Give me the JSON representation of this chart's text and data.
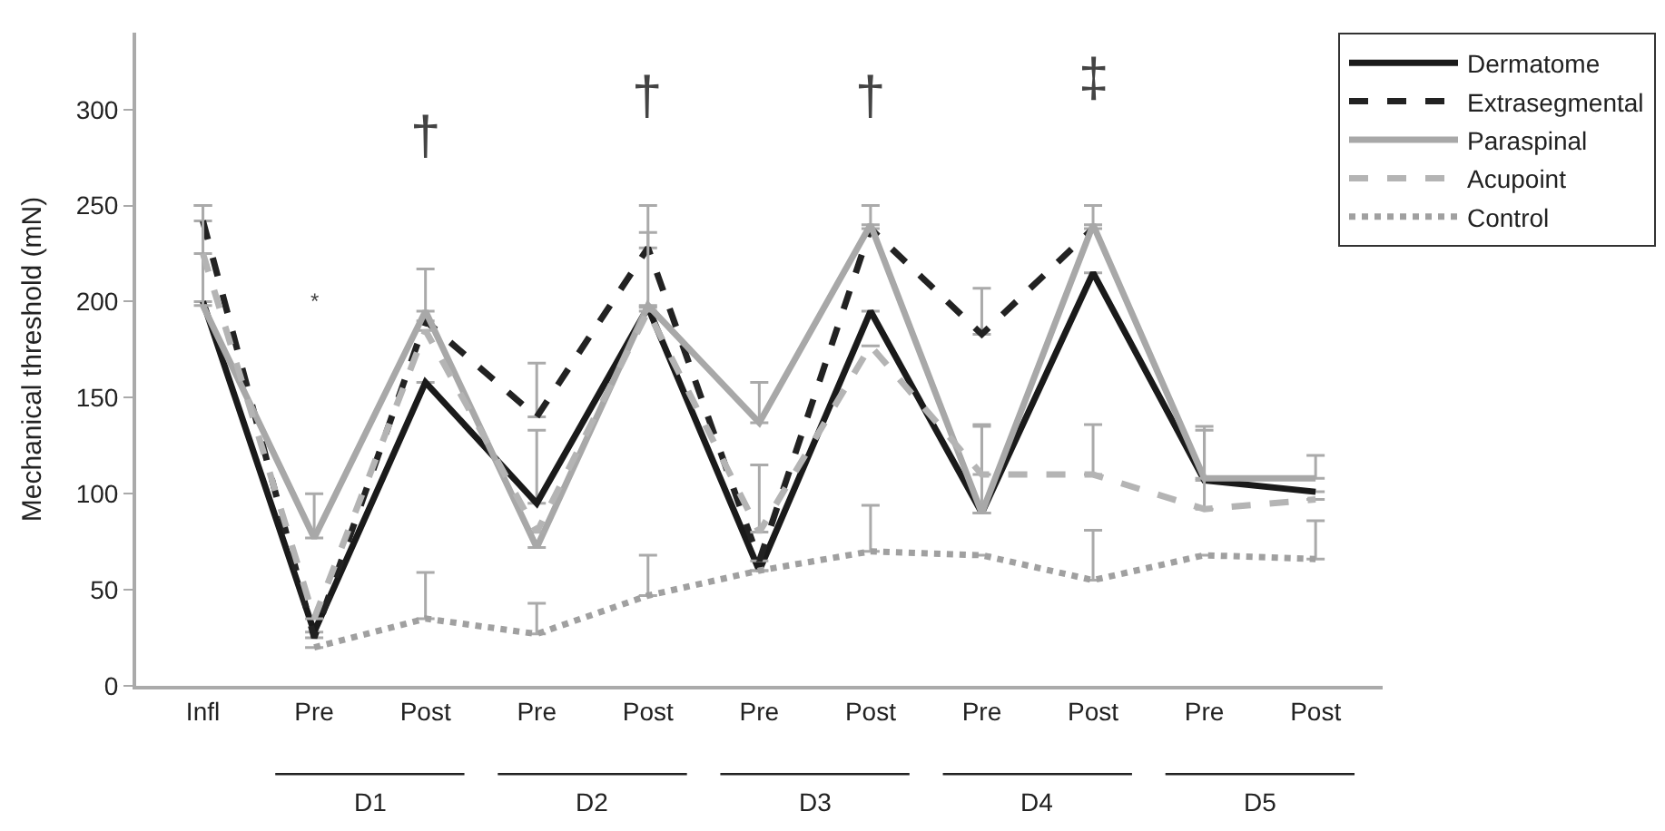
{
  "chart_data": {
    "type": "line",
    "ylabel": "Mechanical threshold (mN)",
    "categories": [
      "Infl",
      "Pre",
      "Post",
      "Pre",
      "Post",
      "Pre",
      "Post",
      "Pre",
      "Post",
      "Pre",
      "Post"
    ],
    "ylim": [
      0,
      340
    ],
    "yticks": [
      0,
      50,
      100,
      150,
      200,
      250,
      300
    ],
    "series": [
      {
        "name": "Dermatome",
        "color": "#1a1a1a",
        "line_style": "solid",
        "values": [
          200,
          28,
          158,
          95,
          197,
          60,
          195,
          90,
          215,
          107,
          101
        ],
        "errors": [
          null,
          null,
          null,
          [
            95,
            133
          ],
          null,
          null,
          null,
          null,
          null,
          null,
          null
        ]
      },
      {
        "name": "Extrasegmental",
        "color": "#222222",
        "line_style": "dashed",
        "values": [
          242,
          25,
          190,
          140,
          228,
          65,
          238,
          183,
          238,
          null,
          null
        ],
        "errors": [
          [
            242,
            250
          ],
          null,
          null,
          [
            140,
            168
          ],
          [
            228,
            250
          ],
          null,
          null,
          [
            183,
            207
          ],
          null,
          null,
          null
        ]
      },
      {
        "name": "Paraspinal",
        "color": "#a8a8a8",
        "line_style": "solid",
        "values": [
          198,
          77,
          195,
          72,
          198,
          137,
          240,
          90,
          240,
          108,
          108
        ],
        "errors": [
          [
            198,
            250
          ],
          [
            77,
            100
          ],
          [
            195,
            217
          ],
          null,
          [
            198,
            236
          ],
          [
            137,
            158
          ],
          [
            240,
            250
          ],
          [
            90,
            136
          ],
          [
            240,
            250
          ],
          [
            108,
            135
          ],
          [
            108,
            120
          ]
        ]
      },
      {
        "name": "Acupoint",
        "color": "#b4b4b4",
        "line_style": "dashed",
        "values": [
          225,
          35,
          185,
          80,
          195,
          80,
          177,
          110,
          110,
          92,
          97
        ],
        "errors": [
          null,
          null,
          null,
          null,
          null,
          [
            80,
            115
          ],
          null,
          [
            110,
            135
          ],
          [
            110,
            136
          ],
          [
            92,
            133
          ],
          null
        ]
      },
      {
        "name": "Control",
        "color": "#a0a0a0",
        "line_style": "dotted",
        "values": [
          null,
          20,
          35,
          27,
          47,
          60,
          70,
          68,
          55,
          68,
          66
        ],
        "errors": [
          null,
          null,
          [
            35,
            59
          ],
          [
            27,
            43
          ],
          [
            47,
            68
          ],
          null,
          [
            70,
            94
          ],
          null,
          [
            55,
            81
          ],
          null,
          [
            66,
            86
          ]
        ]
      }
    ],
    "annotations": [
      "*",
      "†",
      "†",
      "†",
      "‡",
      "D1",
      "D2",
      "D3",
      "D4",
      "D5"
    ],
    "legend": "top right",
    "marker": "none"
  }
}
